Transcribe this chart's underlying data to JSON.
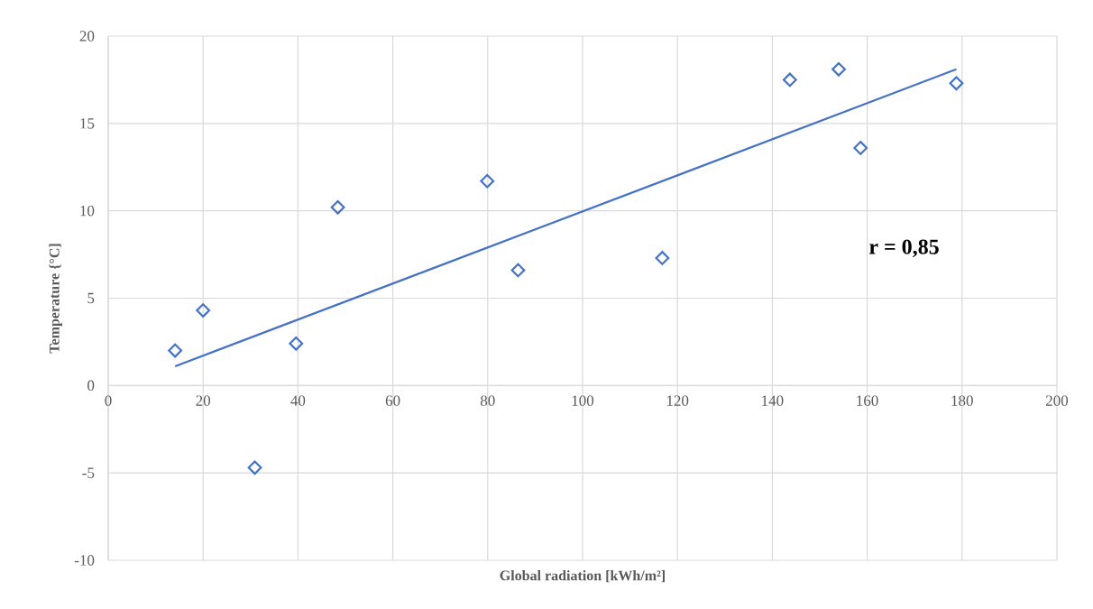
{
  "chart_data": {
    "type": "scatter",
    "xlabel": "Global radiation [kWh/m²]",
    "ylabel": "Temperature {°C]",
    "xlim": [
      0,
      200
    ],
    "ylim": [
      -10,
      20
    ],
    "xticks": [
      0,
      20,
      40,
      60,
      80,
      100,
      120,
      140,
      160,
      180,
      200
    ],
    "yticks": [
      -10,
      -5,
      0,
      5,
      10,
      15,
      20
    ],
    "grid": true,
    "annotations": [
      "r = 0,85"
    ],
    "series": [
      {
        "color": "#4472c4",
        "marker": "diamond",
        "x": [
          14.1,
          20.0,
          30.9,
          39.6,
          48.4,
          79.9,
          86.4,
          116.8,
          143.7,
          154.0,
          158.6,
          178.8
        ],
        "values": [
          2.0,
          4.3,
          -4.7,
          2.4,
          10.2,
          11.7,
          6.6,
          7.3,
          17.5,
          18.1,
          13.6,
          17.3
        ]
      },
      {
        "type": "line",
        "color": "#4472c4",
        "marker": "none",
        "x": [
          14.1,
          178.8
        ],
        "values": [
          1.1,
          18.1
        ]
      }
    ]
  }
}
